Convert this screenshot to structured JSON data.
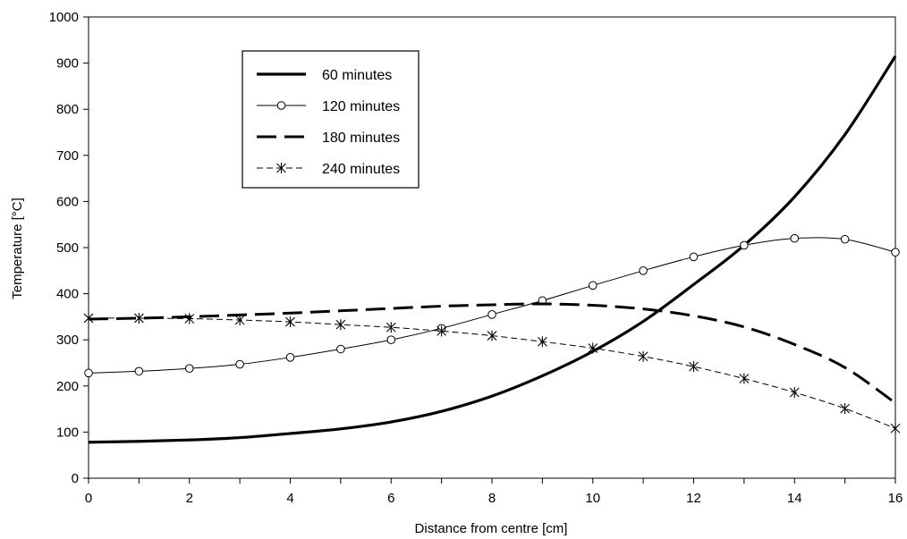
{
  "chart_data": {
    "type": "line",
    "title": "",
    "xlabel": "Distance from centre [cm]",
    "ylabel": "Temperature [°C]",
    "xlim": [
      0,
      16
    ],
    "ylim": [
      0,
      1000
    ],
    "xticks": [
      "0",
      "2",
      "4",
      "6",
      "8",
      "10",
      "12",
      "14",
      "16"
    ],
    "yticks": [
      "0",
      "100",
      "200",
      "300",
      "400",
      "500",
      "600",
      "700",
      "800",
      "900",
      "1000"
    ],
    "grid": false,
    "legend_position": "top-left",
    "x": [
      0,
      1,
      2,
      3,
      4,
      5,
      6,
      7,
      8,
      9,
      10,
      11,
      12,
      13,
      14,
      15,
      16
    ],
    "series": [
      {
        "name": "60 minutes",
        "style": "solid-thick",
        "marker": "none",
        "values": [
          78,
          80,
          83,
          88,
          97,
          107,
          122,
          145,
          178,
          222,
          275,
          340,
          420,
          505,
          610,
          745,
          915
        ]
      },
      {
        "name": "120 minutes",
        "style": "solid-thin",
        "marker": "circle",
        "values": [
          228,
          232,
          238,
          247,
          262,
          280,
          300,
          325,
          355,
          385,
          418,
          450,
          480,
          505,
          520,
          518,
          490
        ]
      },
      {
        "name": "180 minutes",
        "style": "dashed-thick",
        "marker": "none",
        "values": [
          345,
          347,
          350,
          354,
          358,
          363,
          368,
          373,
          376,
          378,
          375,
          367,
          352,
          328,
          290,
          240,
          163
        ]
      },
      {
        "name": "240 minutes",
        "style": "dashed-thin",
        "marker": "star",
        "values": [
          347,
          347,
          346,
          343,
          339,
          333,
          327,
          319,
          309,
          296,
          282,
          264,
          242,
          216,
          186,
          151,
          108
        ]
      }
    ]
  }
}
